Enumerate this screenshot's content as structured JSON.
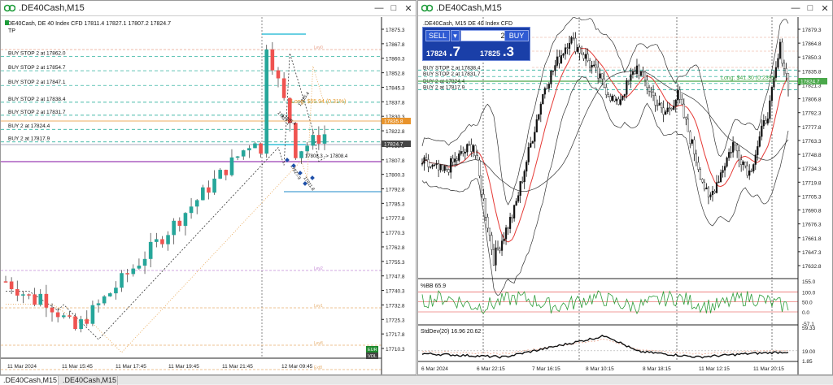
{
  "left_window": {
    "title": ".DE40Cash,M15",
    "header": ".DE40Cash, DE 40 Index CFD  17811.4 17827.1 17807.2 17824.7",
    "tp_label": "TP",
    "orders": [
      {
        "label": "BUY STOP 2 at 17862.0"
      },
      {
        "label": "BUY STOP 2 at 17854.7"
      },
      {
        "label": "BUY STOP 2 at 17847.1"
      },
      {
        "label": "BUY STOP 2 at 17838.4"
      },
      {
        "label": "BUY STOP 2 at 17831.7"
      },
      {
        "label": "BUY 2 at 17824.4"
      },
      {
        "label": "BUY 2 at 17817.9"
      }
    ],
    "price_axis": [
      "17875.3",
      "17867.8",
      "17860.3",
      "17852.8",
      "17845.3",
      "17837.8",
      "17830.3",
      "17822.8",
      "17815.3",
      "17807.8",
      "17800.3",
      "17792.8",
      "17785.3",
      "17777.8",
      "17770.3",
      "17762.8",
      "17755.3",
      "17747.8",
      "17740.3",
      "17732.8",
      "17725.3",
      "17717.8",
      "17710.3"
    ],
    "price_tag_orange": "17835.8",
    "price_tag_current": "17824.7",
    "time_axis": [
      "11 Mar 2024",
      "11 Mar 15:45",
      "11 Mar 17:45",
      "11 Mar 19:45",
      "11 Mar 21:45",
      "12 Mar 09:45"
    ],
    "long_label": "Long: $55.94 (0.31%)",
    "arrow_label": "17808.3 -> 17808.4",
    "level_labels": [
      "Lev0",
      "Lev2",
      "Lev1",
      "Lev8",
      "Ext8"
    ],
    "eur_badge": "EUR",
    "vol_badge": "VOL",
    "annotations": [
      "17825.4",
      "17835.4",
      "17827.1",
      "17827.9",
      "17811.8"
    ]
  },
  "right_window": {
    "title": ".DE40Cash,M15",
    "header": ".DE40Cash, M15  DE 40 Index CFD",
    "sell_label": "SELL",
    "buy_label": "BUY",
    "volume": "2.00",
    "bid_small": "17824",
    "bid_big": ".7",
    "ask_small": "17825",
    "ask_big": ".3",
    "orders": [
      {
        "label": "BUY STOP 2 at 17838.4"
      },
      {
        "label": "BUY STOP 2 at 17831.7"
      },
      {
        "label": "BUY 2 at 17824.4"
      },
      {
        "label": "BUY 2 at 17817.9"
      }
    ],
    "long_label": "Long: $41.30 (0.23%)",
    "price_axis": [
      "17879.3",
      "17864.8",
      "17850.3",
      "17835.8",
      "17821.3",
      "17806.8",
      "17792.3",
      "17777.8",
      "17763.3",
      "17748.8",
      "17734.3",
      "17719.8",
      "17705.3",
      "17690.8",
      "17676.3",
      "17661.8",
      "17647.3",
      "17632.8"
    ],
    "price_tag_current": "17824.7",
    "pctbb_label": "%BB 65.9",
    "pctbb_axis": [
      "155.0",
      "100.0",
      "50.0",
      "0.0",
      "-57.1"
    ],
    "stddev_label": "StdDev(20) 16.96 20.62",
    "stddev_axis": [
      "59.33",
      "19.00",
      "1.85"
    ],
    "time_axis": [
      "6 Mar 2024",
      "6 Mar 22:15",
      "7 Mar 16:15",
      "8 Mar 10:15",
      "8 Mar 18:15",
      "11 Mar 12:15",
      "11 Mar 20:15"
    ]
  },
  "tabs": [
    ".DE40Cash,M15",
    ".DE40Cash,M15"
  ],
  "colors": {
    "bull": "#26a69a",
    "bear": "#ef5350",
    "background": "#ffffff",
    "grid": "#e4e4e4",
    "order_line": "#0aa38e",
    "long": "#4aa84a",
    "purple": "#9b3fb5"
  }
}
